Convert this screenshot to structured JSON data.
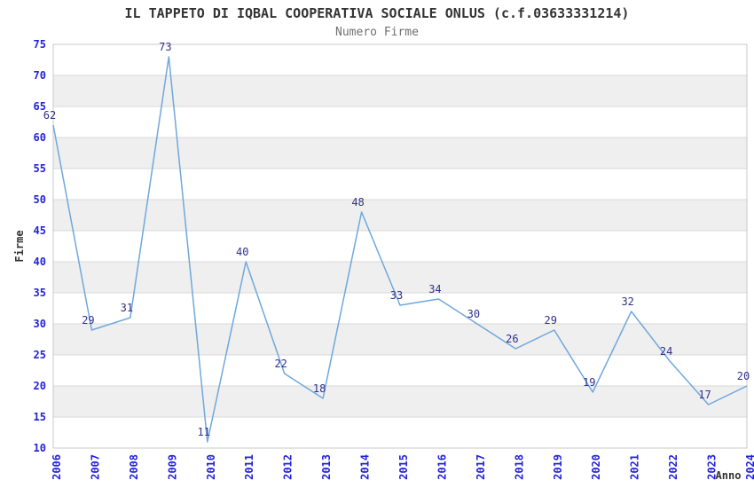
{
  "header": {
    "title": "IL TAPPETO DI IQBAL COOPERATIVA SOCIALE ONLUS (c.f.03633331214)",
    "subtitle": "Numero Firme"
  },
  "chart_data": {
    "type": "line",
    "title": "IL TAPPETO DI IQBAL COOPERATIVA SOCIALE ONLUS (c.f.03633331214)",
    "subtitle": "Numero Firme",
    "xlabel": "Anno",
    "ylabel": "Firme",
    "categories": [
      "2006",
      "2007",
      "2008",
      "2009",
      "2010",
      "2011",
      "2012",
      "2013",
      "2014",
      "2015",
      "2016",
      "2017",
      "2018",
      "2019",
      "2020",
      "2021",
      "2022",
      "2023",
      "2024"
    ],
    "series": [
      {
        "name": "Numero Firme",
        "values": [
          62,
          29,
          31,
          73,
          11,
          40,
          22,
          18,
          48,
          33,
          34,
          30,
          26,
          29,
          19,
          32,
          24,
          17,
          20
        ]
      }
    ],
    "ylim": [
      10,
      75
    ],
    "ytick_step": 5,
    "yticks": [
      10,
      15,
      20,
      25,
      30,
      35,
      40,
      45,
      50,
      55,
      60,
      65,
      70,
      75
    ],
    "grid": "horizontal-lines-with-alternating-bands",
    "legend": "none",
    "point_labels_visible": true,
    "colors": {
      "line": "#6fa8dc",
      "point_label": "#31318d",
      "tick_label": "#2323d7",
      "band_fill": "#efefef",
      "grid_line": "#d9d9d9",
      "plot_border": "#c9c9c9",
      "title": "#333333",
      "subtitle": "#707070",
      "axis_title": "#333333",
      "background": "#ffffff"
    }
  }
}
